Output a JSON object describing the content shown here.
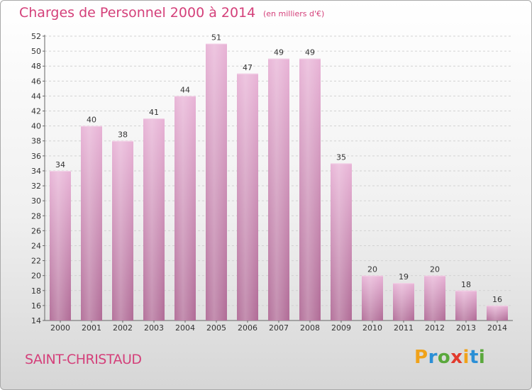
{
  "chart_data": {
    "type": "bar",
    "title": "Charges de Personnel 2000 à 2014",
    "subtitle": "(en milliers d'€)",
    "categories": [
      "2000",
      "2001",
      "2002",
      "2003",
      "2004",
      "2005",
      "2006",
      "2007",
      "2008",
      "2009",
      "2010",
      "2011",
      "2012",
      "2013",
      "2014"
    ],
    "values": [
      34,
      40,
      38,
      41,
      44,
      51,
      47,
      49,
      49,
      35,
      20,
      19,
      20,
      18,
      16
    ],
    "ylim": [
      14,
      52
    ],
    "yticks": [
      14,
      16,
      18,
      20,
      22,
      24,
      26,
      28,
      30,
      32,
      34,
      36,
      38,
      40,
      42,
      44,
      46,
      48,
      50,
      52
    ],
    "grid": true,
    "bar_color": "#e2a6cf",
    "data_labels": true
  },
  "place": "SAINT-CHRISTAUD",
  "logo": {
    "letters": [
      "P",
      "r",
      "o",
      "x",
      "i",
      "t",
      "i"
    ],
    "colors": [
      "#f0a21a",
      "#2b8fd6",
      "#5aa83c",
      "#e23a2d",
      "#f0a21a",
      "#2b8fd6",
      "#5aa83c"
    ]
  },
  "colors": {
    "accent": "#d4407a",
    "bar": "#e2a6cf"
  }
}
